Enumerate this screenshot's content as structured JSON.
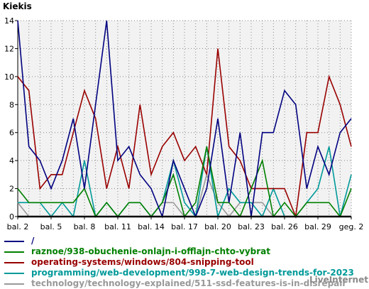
{
  "chart_data": {
    "type": "line",
    "title": "Kiekis",
    "xlabel": "",
    "ylabel": "",
    "ylim": [
      0,
      14
    ],
    "yticks": [
      0,
      2,
      4,
      6,
      8,
      10,
      12,
      14
    ],
    "x": [
      "bal. 2",
      "bal. 3",
      "bal. 4",
      "bal. 5",
      "bal. 6",
      "bal. 7",
      "bal. 8",
      "bal. 9",
      "bal. 10",
      "bal. 11",
      "bal. 12",
      "bal. 13",
      "bal. 14",
      "bal. 15",
      "bal. 16",
      "bal. 17",
      "bal. 18",
      "bal. 19",
      "bal. 20",
      "bal. 21",
      "bal. 22",
      "bal. 23",
      "bal. 24",
      "bal. 25",
      "bal. 26",
      "bal. 27",
      "bal. 28",
      "bal. 29",
      "bal. 30",
      "geg. 1",
      "geg. 2"
    ],
    "xtick_labels": [
      {
        "index": 0,
        "label": "bal. 2"
      },
      {
        "index": 3,
        "label": "bal. 5"
      },
      {
        "index": 6,
        "label": "bal. 8"
      },
      {
        "index": 9,
        "label": "bal. 11"
      },
      {
        "index": 12,
        "label": "bal. 14"
      },
      {
        "index": 15,
        "label": "bal. 17"
      },
      {
        "index": 18,
        "label": "bal. 20"
      },
      {
        "index": 21,
        "label": "bal. 23"
      },
      {
        "index": 24,
        "label": "bal. 26"
      },
      {
        "index": 27,
        "label": "bal. 29"
      },
      {
        "index": 30,
        "label": "geg. 2"
      }
    ],
    "grid": true,
    "legend_position": "bottom",
    "series": [
      {
        "name": "/",
        "color": "#000080",
        "values": [
          14,
          5,
          4,
          2,
          4,
          7,
          2,
          8,
          14,
          4,
          5,
          3,
          2,
          0,
          4,
          2,
          0,
          2,
          7,
          1,
          6,
          0,
          6,
          6,
          9,
          8,
          2,
          5,
          3,
          6,
          7
        ]
      },
      {
        "name": "raznoe/938-obuchenie-onlajn-i-offlajn-chto-vybrat",
        "color": "#008000",
        "values": [
          2,
          1,
          1,
          1,
          1,
          1,
          2,
          0,
          1,
          0,
          1,
          1,
          0,
          1,
          3,
          0,
          1,
          5,
          1,
          1,
          0,
          2,
          4,
          0,
          1,
          0,
          1,
          1,
          1,
          0,
          2
        ]
      },
      {
        "name": "operating-systems/windows/804-snipping-tool",
        "color": "#990000",
        "values": [
          10,
          9,
          2,
          3,
          3,
          6,
          9,
          7,
          2,
          5,
          2,
          8,
          3,
          5,
          6,
          4,
          5,
          3,
          12,
          5,
          4,
          2,
          2,
          2,
          2,
          0,
          6,
          6,
          10,
          8,
          5
        ]
      },
      {
        "name": "programming/web-development/998-7-web-design-trends-for-2023",
        "color": "#009999",
        "values": [
          1,
          1,
          1,
          0,
          1,
          0,
          4,
          0,
          1,
          0,
          1,
          1,
          0,
          1,
          4,
          1,
          0,
          5,
          0,
          2,
          1,
          1,
          0,
          2,
          0,
          0,
          1,
          2,
          5,
          0,
          3
        ]
      },
      {
        "name": "technology/technology-explained/511-ssd-features-is-in-disrepair",
        "color": "#999999",
        "values": [
          1,
          0,
          0,
          0,
          0,
          0,
          0,
          0,
          0,
          0,
          0,
          0,
          0,
          1,
          1,
          0,
          0,
          3,
          1,
          0,
          1,
          1,
          1,
          0,
          0,
          0,
          0,
          0,
          0,
          0,
          0
        ]
      }
    ]
  },
  "watermark": "LiveInternet"
}
